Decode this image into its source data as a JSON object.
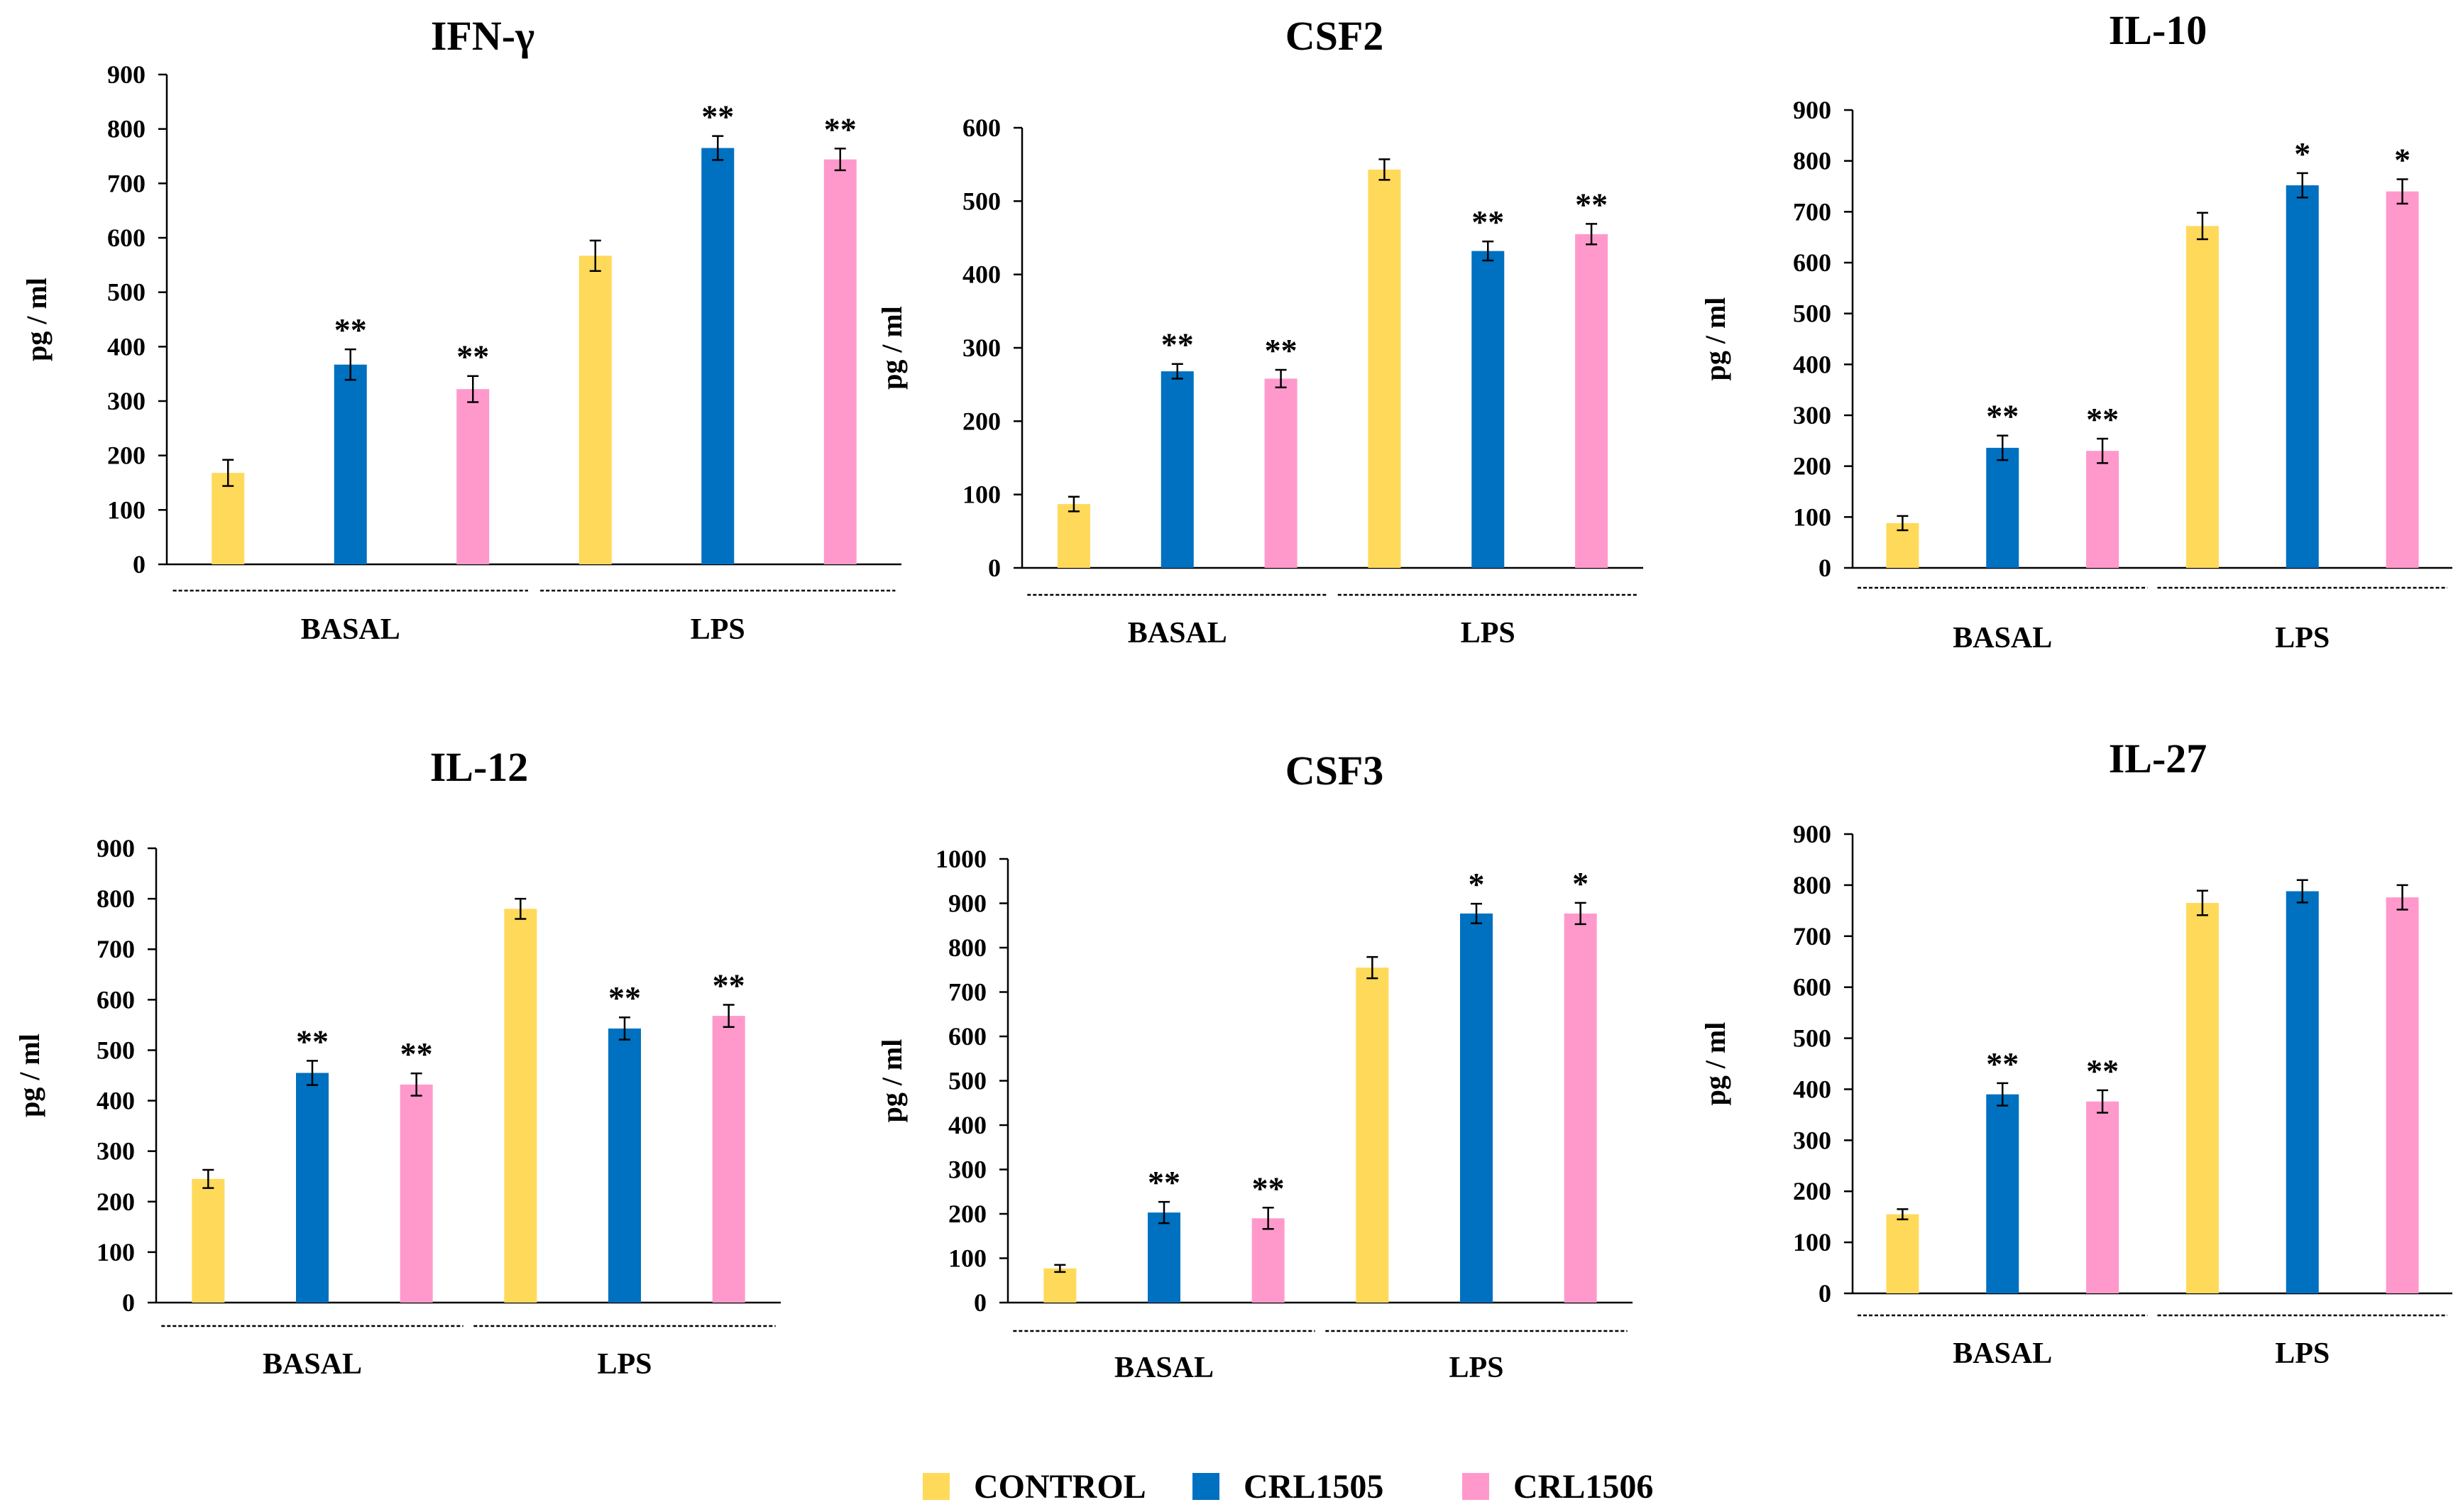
{
  "colors": {
    "CONTROL": "#ffd95a",
    "CRL1505": "#0070c0",
    "CRL1506": "#ff99cc",
    "axis": "#000000"
  },
  "legend": [
    "CONTROL",
    "CRL1505",
    "CRL1506"
  ],
  "chart_data": [
    {
      "type": "bar",
      "title": "IFN-γ",
      "ylabel": "pg / ml",
      "ylim": [
        0,
        900
      ],
      "yticks": [
        0,
        100,
        200,
        300,
        400,
        500,
        600,
        700,
        800,
        900
      ],
      "groups": [
        "BASAL",
        "LPS"
      ],
      "series": [
        {
          "name": "CONTROL",
          "values": [
            168,
            567
          ],
          "errors": [
            24,
            28
          ],
          "stars": [
            "",
            ""
          ]
        },
        {
          "name": "CRL1505",
          "values": [
            367,
            765
          ],
          "errors": [
            28,
            22
          ],
          "stars": [
            "**",
            "**"
          ]
        },
        {
          "name": "CRL1506",
          "values": [
            322,
            744
          ],
          "errors": [
            24,
            20
          ],
          "stars": [
            "**",
            "**"
          ]
        }
      ]
    },
    {
      "type": "bar",
      "title": "CSF2",
      "ylabel": "pg / ml",
      "ylim": [
        0,
        600
      ],
      "yticks": [
        0,
        100,
        200,
        300,
        400,
        500,
        600
      ],
      "groups": [
        "BASAL",
        "LPS"
      ],
      "series": [
        {
          "name": "CONTROL",
          "values": [
            87,
            543
          ],
          "errors": [
            10,
            14
          ],
          "stars": [
            "",
            ""
          ]
        },
        {
          "name": "CRL1505",
          "values": [
            268,
            432
          ],
          "errors": [
            10,
            13
          ],
          "stars": [
            "**",
            "**"
          ]
        },
        {
          "name": "CRL1506",
          "values": [
            258,
            455
          ],
          "errors": [
            12,
            14
          ],
          "stars": [
            "**",
            "**"
          ]
        }
      ]
    },
    {
      "type": "bar",
      "title": "IL-10",
      "ylabel": "pg / ml",
      "ylim": [
        0,
        900
      ],
      "yticks": [
        0,
        100,
        200,
        300,
        400,
        500,
        600,
        700,
        800,
        900
      ],
      "groups": [
        "BASAL",
        "LPS"
      ],
      "series": [
        {
          "name": "CONTROL",
          "values": [
            88,
            672
          ],
          "errors": [
            14,
            26
          ],
          "stars": [
            "",
            ""
          ]
        },
        {
          "name": "CRL1505",
          "values": [
            236,
            752
          ],
          "errors": [
            24,
            24
          ],
          "stars": [
            "**",
            "*"
          ]
        },
        {
          "name": "CRL1506",
          "values": [
            230,
            740
          ],
          "errors": [
            24,
            24
          ],
          "stars": [
            "**",
            "*"
          ]
        }
      ]
    },
    {
      "type": "bar",
      "title": "IL-12",
      "ylabel": "pg / ml",
      "ylim": [
        0,
        900
      ],
      "yticks": [
        0,
        100,
        200,
        300,
        400,
        500,
        600,
        700,
        800,
        900
      ],
      "groups": [
        "BASAL",
        "LPS"
      ],
      "series": [
        {
          "name": "CONTROL",
          "values": [
            245,
            780
          ],
          "errors": [
            18,
            20
          ],
          "stars": [
            "",
            ""
          ]
        },
        {
          "name": "CRL1505",
          "values": [
            455,
            543
          ],
          "errors": [
            24,
            22
          ],
          "stars": [
            "**",
            "**"
          ]
        },
        {
          "name": "CRL1506",
          "values": [
            432,
            568
          ],
          "errors": [
            22,
            22
          ],
          "stars": [
            "**",
            "**"
          ]
        }
      ]
    },
    {
      "type": "bar",
      "title": "CSF3",
      "ylabel": "pg / ml",
      "ylim": [
        0,
        1000
      ],
      "yticks": [
        0,
        100,
        200,
        300,
        400,
        500,
        600,
        700,
        800,
        900,
        1000
      ],
      "groups": [
        "BASAL",
        "LPS"
      ],
      "series": [
        {
          "name": "CONTROL",
          "values": [
            77,
            755
          ],
          "errors": [
            8,
            24
          ],
          "stars": [
            "",
            ""
          ]
        },
        {
          "name": "CRL1505",
          "values": [
            203,
            877
          ],
          "errors": [
            24,
            22
          ],
          "stars": [
            "**",
            "*"
          ]
        },
        {
          "name": "CRL1506",
          "values": [
            190,
            877
          ],
          "errors": [
            24,
            24
          ],
          "stars": [
            "**",
            "*"
          ]
        }
      ]
    },
    {
      "type": "bar",
      "title": "IL-27",
      "ylabel": "pg / ml",
      "ylim": [
        0,
        900
      ],
      "yticks": [
        0,
        100,
        200,
        300,
        400,
        500,
        600,
        700,
        800,
        900
      ],
      "groups": [
        "BASAL",
        "LPS"
      ],
      "series": [
        {
          "name": "CONTROL",
          "values": [
            155,
            765
          ],
          "errors": [
            10,
            24
          ],
          "stars": [
            "",
            ""
          ]
        },
        {
          "name": "CRL1505",
          "values": [
            390,
            788
          ],
          "errors": [
            22,
            22
          ],
          "stars": [
            "**",
            ""
          ]
        },
        {
          "name": "CRL1506",
          "values": [
            376,
            776
          ],
          "errors": [
            22,
            24
          ],
          "stars": [
            "**",
            ""
          ]
        }
      ]
    }
  ]
}
